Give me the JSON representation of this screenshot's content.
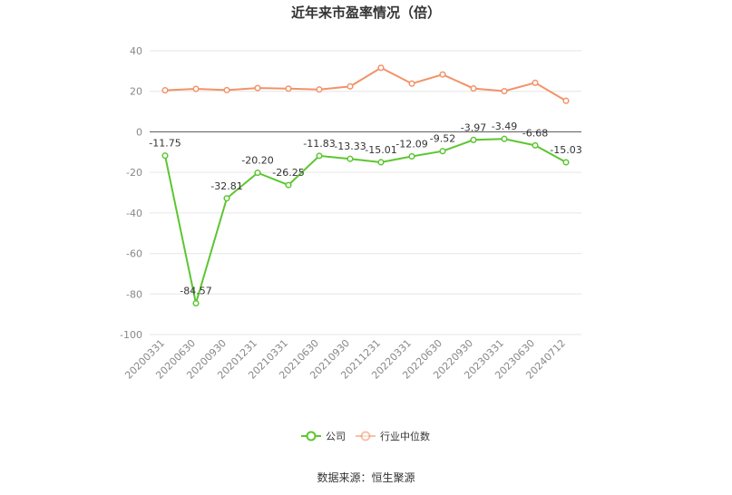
{
  "chart_data": {
    "type": "line",
    "title": "近年来市盈率情况（倍）",
    "xlabel": "",
    "ylabel": "",
    "ylim": [
      -100,
      40
    ],
    "yticks": [
      40,
      20,
      0,
      -20,
      -40,
      -60,
      -80,
      -100
    ],
    "grid": true,
    "legend_position": "bottom",
    "categories": [
      "20200331",
      "20200630",
      "20200930",
      "20201231",
      "20210331",
      "20210630",
      "20210930",
      "20211231",
      "20220331",
      "20220630",
      "20220930",
      "20230331",
      "20230630",
      "20240712"
    ],
    "series": [
      {
        "name": "公司",
        "color": "#5cc631",
        "values": [
          -11.75,
          -84.57,
          -32.81,
          -20.2,
          -26.25,
          -11.83,
          -13.33,
          -15.01,
          -12.09,
          -9.52,
          -3.97,
          -3.49,
          -6.68,
          -15.03
        ],
        "labels": [
          "-11.75",
          "-84.57",
          "-32.81",
          "-20.20",
          "-26.25",
          "-11.83",
          "-13.33",
          "-15.01",
          "-12.09",
          "-9.52",
          "-3.97",
          "-3.49",
          "-6.68",
          "-15.03"
        ]
      },
      {
        "name": "行业中位数",
        "color": "#f39268",
        "values": [
          20.5,
          21.2,
          20.6,
          21.6,
          21.3,
          20.9,
          22.4,
          31.6,
          23.8,
          28.3,
          21.4,
          20.1,
          24.2,
          15.3
        ]
      }
    ]
  },
  "source": "数据来源：恒生聚源"
}
